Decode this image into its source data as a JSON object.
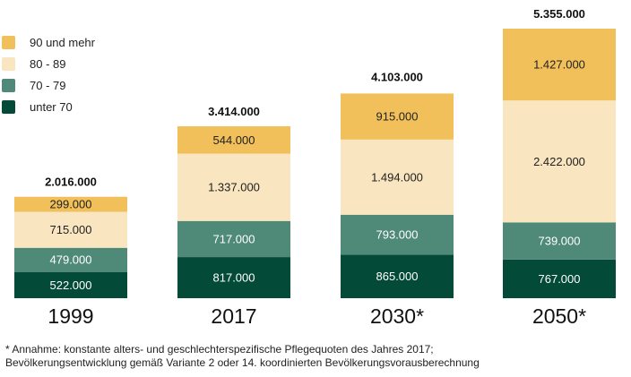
{
  "chart_data": {
    "type": "bar",
    "stacked": true,
    "categories": [
      "1999",
      "2017",
      "2030*",
      "2050*"
    ],
    "series": [
      {
        "name": "unter 70",
        "color": "#044a38",
        "label_color": "#ffffff",
        "values": [
          522000,
          817000,
          865000,
          767000
        ],
        "labels": [
          "522.000",
          "817.000",
          "865.000",
          "767.000"
        ]
      },
      {
        "name": "70 - 79",
        "color": "#4f8a79",
        "label_color": "#ffffff",
        "values": [
          479000,
          717000,
          793000,
          739000
        ],
        "labels": [
          "479.000",
          "717.000",
          "793.000",
          "739.000"
        ]
      },
      {
        "name": "80 - 89",
        "color": "#f9e5bf",
        "label_color": "#222222",
        "values": [
          715000,
          1337000,
          1494000,
          2422000
        ],
        "labels": [
          "715.000",
          "1.337.000",
          "1.494.000",
          "2.422.000"
        ]
      },
      {
        "name": "90 und mehr",
        "color": "#f2c05a",
        "label_color": "#222222",
        "values": [
          299000,
          544000,
          915000,
          1427000
        ],
        "labels": [
          "299.000",
          "544.000",
          "915.000",
          "1.427.000"
        ]
      }
    ],
    "totals": [
      2016000,
      3414000,
      4103000,
      5355000
    ],
    "total_labels": [
      "2.016.000",
      "3.414.000",
      "4.103.000",
      "5.355.000"
    ],
    "legend": [
      "90 und mehr",
      "80 - 89",
      "70 - 79",
      "unter 70"
    ],
    "legend_position": "top-left",
    "title": "",
    "xlabel": "",
    "ylabel": "",
    "ylim": [
      0,
      5355000
    ],
    "grid": false
  },
  "footnote": {
    "line1": "* Annahme: konstante alters- und geschlechterspezifische Pflegequoten des Jahres 2017;",
    "line2": "Bevölkerungsentwicklung gemäß Variante 2 oder 14. koordinierten Bevölkerungsvorausberechnung"
  }
}
